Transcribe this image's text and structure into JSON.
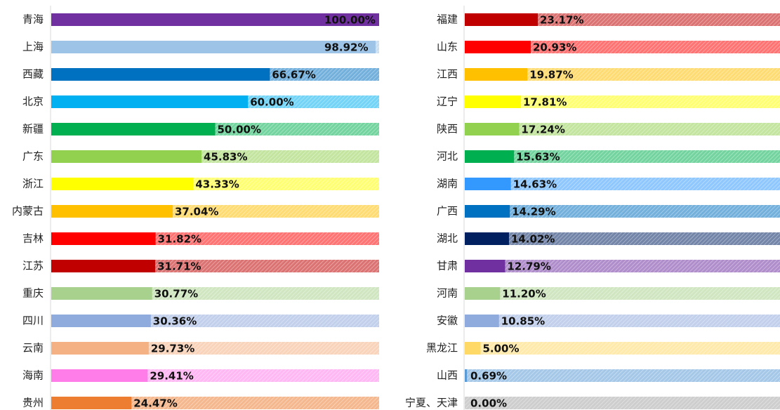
{
  "chart_data": [
    {
      "type": "bar",
      "orientation": "horizontal",
      "xlim": [
        0,
        100
      ],
      "categories": [
        "青海",
        "上海",
        "西藏",
        "北京",
        "新疆",
        "广东",
        "浙江",
        "内蒙古",
        "吉林",
        "江苏",
        "重庆",
        "四川",
        "云南",
        "海南",
        "贵州"
      ],
      "values": [
        100,
        98.92,
        66.67,
        60,
        50,
        45.83,
        43.33,
        37.04,
        31.82,
        31.71,
        30.77,
        30.36,
        29.73,
        29.41,
        24.47
      ],
      "value_labels": [
        "100.00%",
        "98.92%",
        "66.67%",
        "60.00%",
        "50.00%",
        "45.83%",
        "43.33%",
        "37.04%",
        "31.82%",
        "31.71%",
        "30.77%",
        "30.36%",
        "29.73%",
        "29.41%",
        "24.47%"
      ],
      "colors": [
        "#7030a0",
        "#9dc3e6",
        "#0070c0",
        "#00b0f0",
        "#00b050",
        "#92d050",
        "#ffff00",
        "#ffc000",
        "#ff0000",
        "#c00000",
        "#a9d18e",
        "#8faadc",
        "#f4b183",
        "#ff7de9",
        "#ed7d31"
      ]
    },
    {
      "type": "bar",
      "orientation": "horizontal",
      "xlim": [
        0,
        100
      ],
      "categories": [
        "福建",
        "山东",
        "江西",
        "辽宁",
        "陕西",
        "河北",
        "湖南",
        "广西",
        "湖北",
        "甘肃",
        "河南",
        "安徽",
        "黑龙江",
        "山西",
        "宁夏、天津"
      ],
      "values": [
        23.17,
        20.93,
        19.87,
        17.81,
        17.24,
        15.63,
        14.63,
        14.29,
        14.02,
        12.79,
        11.2,
        10.85,
        5,
        0.69,
        0
      ],
      "value_labels": [
        "23.17%",
        "20.93%",
        "19.87%",
        "17.81%",
        "17.24%",
        "15.63%",
        "14.63%",
        "14.29%",
        "14.02%",
        "12.79%",
        "11.20%",
        "10.85%",
        "5.00%",
        "0.69%",
        "0.00%"
      ],
      "colors": [
        "#c00000",
        "#ff0000",
        "#ffc000",
        "#ffff00",
        "#92d050",
        "#00b050",
        "#3399ff",
        "#0070c0",
        "#002060",
        "#7030a0",
        "#a9d18e",
        "#8faadc",
        "#ffd966",
        "#5b9bd5",
        "#a6a6a6"
      ]
    }
  ]
}
